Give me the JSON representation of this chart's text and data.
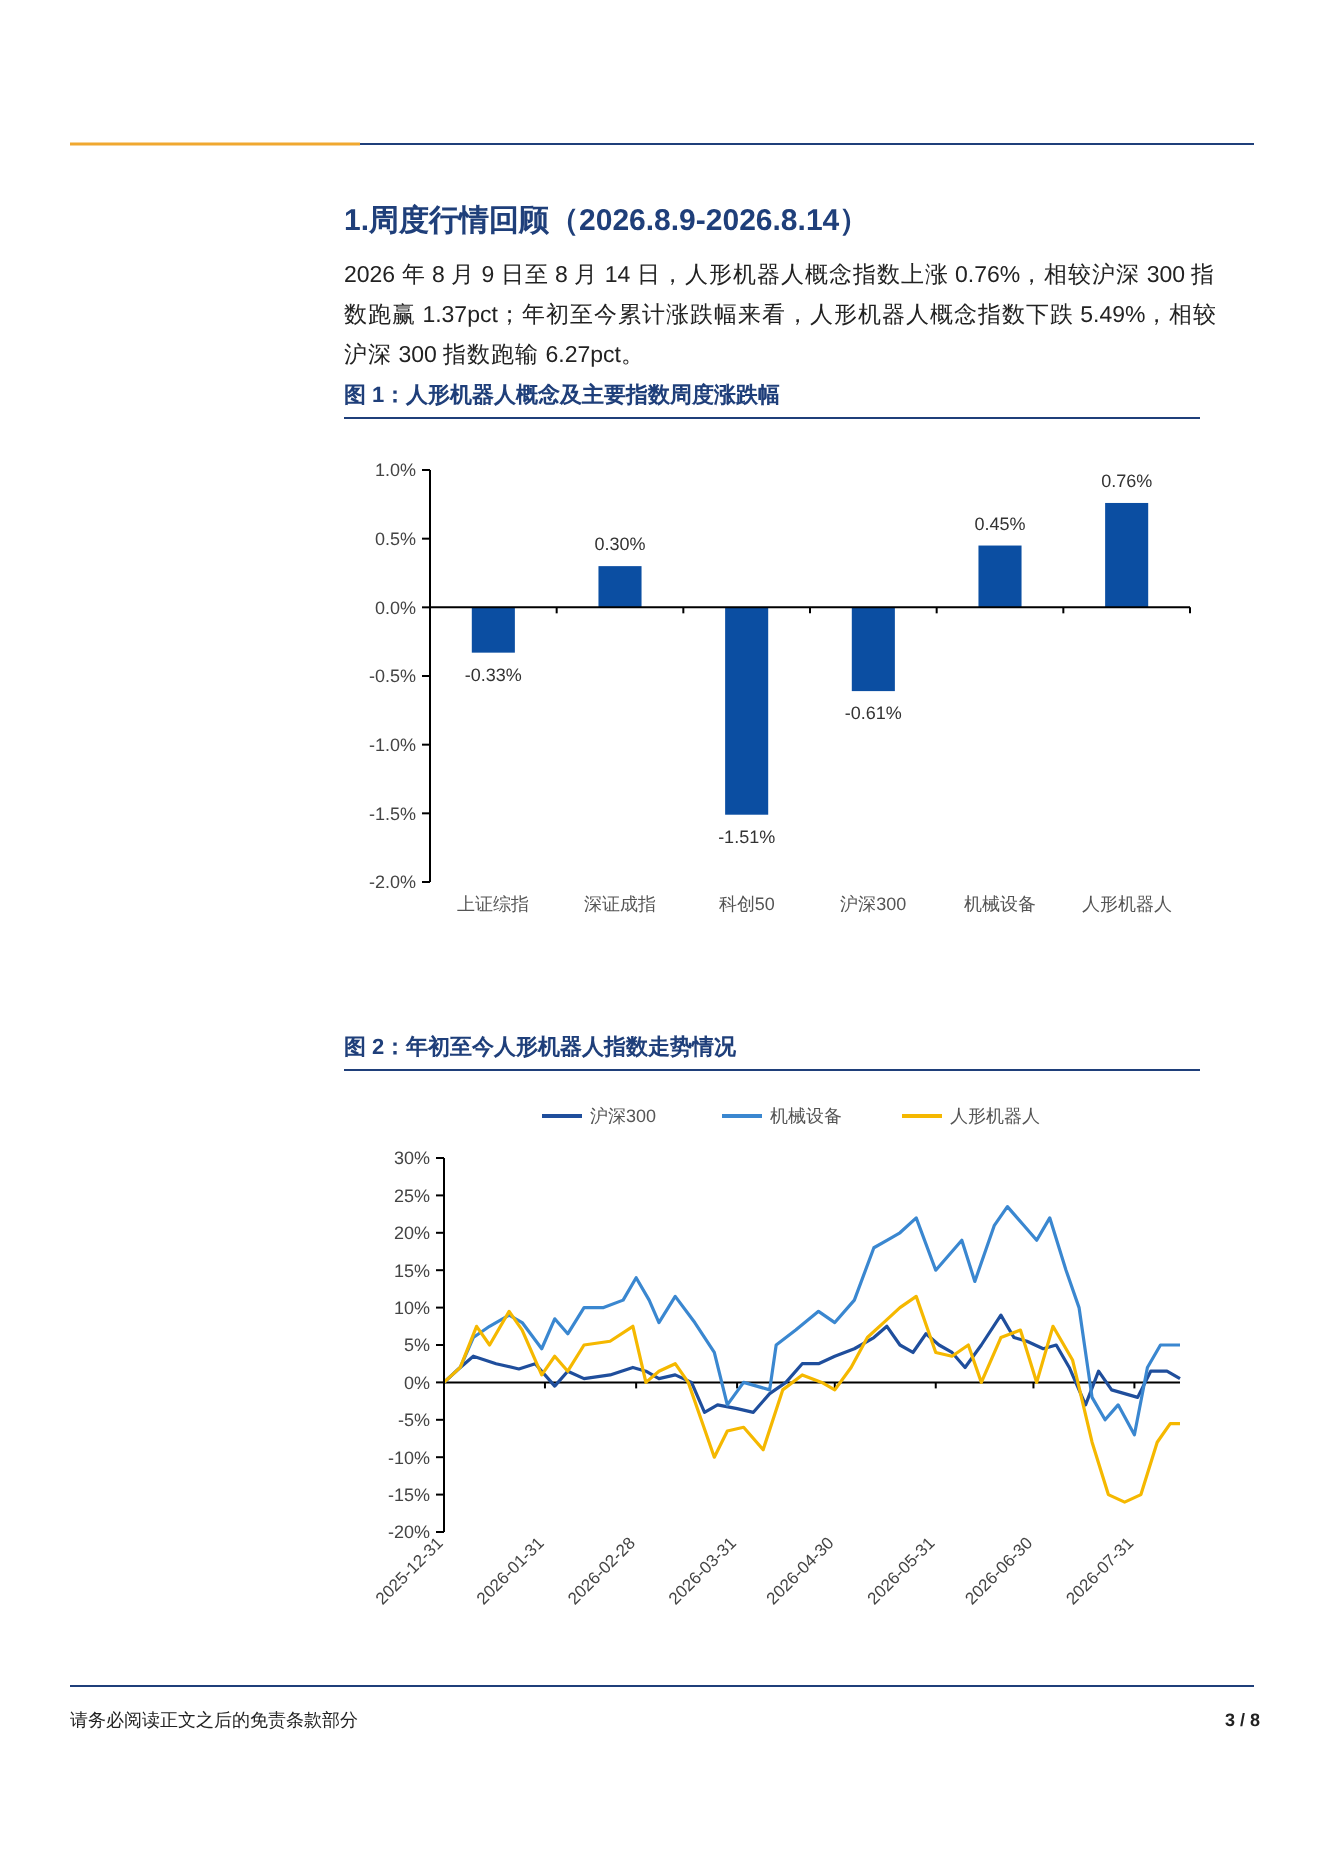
{
  "chart_data": [
    {
      "type": "bar",
      "title": "图 1：人形机器人概念及主要指数周度涨跌幅",
      "annotations": [
        "1.周度行情回顾（2026.8.9-2026.8.14）",
        "2026 年 8 月 9 日至 8 月 14 日，人形机器人概念指数上涨 0.76%，相较沪深 300 指数跑赢 1.37pct；年初至今累计涨跌幅来看，人形机器人概念指数下跌 5.49%，相较沪深 300 指数跑输 6.27pct。"
      ],
      "categories": [
        "上证综指",
        "深证成指",
        "科创50",
        "沪深300",
        "机械设备",
        "人形机器人"
      ],
      "values": [
        -0.33,
        0.3,
        -1.51,
        -0.61,
        0.45,
        0.76
      ],
      "value_labels": [
        "-0.33%",
        "0.30%",
        "-1.51%",
        "-0.61%",
        "0.45%",
        "0.76%"
      ],
      "color": "#0b4ea2",
      "ylim": [
        -2,
        1
      ],
      "yticks": [
        {
          "value": -2,
          "label": "-2.0%"
        },
        {
          "value": -1.5,
          "label": "-1.5%"
        },
        {
          "value": -1,
          "label": "-1.0%"
        },
        {
          "value": -0.5,
          "label": "-0.5%"
        },
        {
          "value": 0,
          "label": "0.0%"
        },
        {
          "value": 0.5,
          "label": "0.5%"
        },
        {
          "value": 1,
          "label": "1.0%"
        }
      ],
      "legend": false
    },
    {
      "type": "line",
      "title": "图 2：年初至今人形机器人指数走势情况",
      "annotations": [
        "请务必阅读正文之后的免责条款部分",
        "3 / 8"
      ],
      "legend": "top",
      "xlim": [
        "2025-12-31",
        "2026-08-14"
      ],
      "xticks": [
        "2025-12-31",
        "2026-01-31",
        "2026-02-28",
        "2026-03-31",
        "2026-04-30",
        "2026-05-31",
        "2026-06-30",
        "2026-07-31"
      ],
      "ylim": [
        -20,
        30
      ],
      "yticks": [
        {
          "value": -20,
          "label": "-20%"
        },
        {
          "value": -15,
          "label": "-15%"
        },
        {
          "value": -10,
          "label": "-10%"
        },
        {
          "value": -5,
          "label": "-5%"
        },
        {
          "value": 0,
          "label": "0%"
        },
        {
          "value": 5,
          "label": "5%"
        },
        {
          "value": 10,
          "label": "10%"
        },
        {
          "value": 15,
          "label": "15%"
        },
        {
          "value": 20,
          "label": "20%"
        },
        {
          "value": 25,
          "label": "25%"
        },
        {
          "value": 30,
          "label": "30%"
        }
      ],
      "series": [
        {
          "name": "沪深300",
          "color": "#1f4e9c",
          "x": [
            "2025-12-31",
            "2026-01-05",
            "2026-01-09",
            "2026-01-16",
            "2026-01-23",
            "2026-01-28",
            "2026-02-03",
            "2026-02-07",
            "2026-02-12",
            "2026-02-20",
            "2026-02-27",
            "2026-03-03",
            "2026-03-07",
            "2026-03-12",
            "2026-03-17",
            "2026-03-21",
            "2026-03-25",
            "2026-03-31",
            "2026-04-05",
            "2026-04-10",
            "2026-04-15",
            "2026-04-20",
            "2026-04-25",
            "2026-04-30",
            "2026-05-06",
            "2026-05-12",
            "2026-05-16",
            "2026-05-20",
            "2026-05-24",
            "2026-05-28",
            "2026-06-01",
            "2026-06-05",
            "2026-06-09",
            "2026-06-14",
            "2026-06-20",
            "2026-06-24",
            "2026-06-28",
            "2026-07-03",
            "2026-07-07",
            "2026-07-11",
            "2026-07-16",
            "2026-07-20",
            "2026-07-24",
            "2026-07-28",
            "2026-08-01",
            "2026-08-05",
            "2026-08-10",
            "2026-08-14"
          ],
          "values": [
            0,
            2,
            3.5,
            2.5,
            1.8,
            2.5,
            -0.5,
            1.5,
            0.5,
            1,
            2,
            1.5,
            0.5,
            1,
            0,
            -4,
            -3,
            -3.5,
            -4,
            -1.5,
            0,
            2.5,
            2.5,
            3.5,
            4.5,
            6,
            7.5,
            5,
            4,
            6.5,
            5,
            4,
            2,
            5,
            9,
            6,
            5.5,
            4.5,
            5,
            2,
            -3,
            1.5,
            -1,
            -1.5,
            -2,
            1.5,
            1.5,
            0.5
          ]
        },
        {
          "name": "机械设备",
          "color": "#3a87d0",
          "x": [
            "2025-12-31",
            "2026-01-05",
            "2026-01-09",
            "2026-01-14",
            "2026-01-20",
            "2026-01-24",
            "2026-01-30",
            "2026-02-03",
            "2026-02-07",
            "2026-02-12",
            "2026-02-18",
            "2026-02-24",
            "2026-02-28",
            "2026-03-04",
            "2026-03-07",
            "2026-03-12",
            "2026-03-18",
            "2026-03-24",
            "2026-03-28",
            "2026-04-02",
            "2026-04-06",
            "2026-04-10",
            "2026-04-12",
            "2026-04-18",
            "2026-04-25",
            "2026-04-30",
            "2026-05-06",
            "2026-05-12",
            "2026-05-16",
            "2026-05-20",
            "2026-05-25",
            "2026-05-31",
            "2026-06-04",
            "2026-06-08",
            "2026-06-12",
            "2026-06-18",
            "2026-06-22",
            "2026-06-27",
            "2026-07-01",
            "2026-07-05",
            "2026-07-10",
            "2026-07-14",
            "2026-07-18",
            "2026-07-22",
            "2026-07-26",
            "2026-07-31",
            "2026-08-04",
            "2026-08-08",
            "2026-08-14"
          ],
          "values": [
            0,
            2,
            6,
            7.5,
            9,
            8,
            4.5,
            8.5,
            6.5,
            10,
            10,
            11,
            14,
            11,
            8,
            11.5,
            8,
            4,
            -3,
            0,
            -0.5,
            -1,
            5,
            7,
            9.5,
            8,
            11,
            18,
            19,
            20,
            22,
            15,
            17,
            19,
            13.5,
            21,
            23.5,
            21,
            19,
            22,
            15,
            10,
            -2,
            -5,
            -3,
            -7,
            2,
            5,
            5
          ]
        },
        {
          "name": "人形机器人",
          "color": "#f5b800",
          "x": [
            "2025-12-31",
            "2026-01-05",
            "2026-01-10",
            "2026-01-14",
            "2026-01-20",
            "2026-01-24",
            "2026-01-30",
            "2026-02-03",
            "2026-02-07",
            "2026-02-12",
            "2026-02-20",
            "2026-02-27",
            "2026-03-03",
            "2026-03-07",
            "2026-03-12",
            "2026-03-16",
            "2026-03-20",
            "2026-03-24",
            "2026-03-28",
            "2026-04-02",
            "2026-04-08",
            "2026-04-14",
            "2026-04-20",
            "2026-04-26",
            "2026-04-30",
            "2026-05-05",
            "2026-05-10",
            "2026-05-15",
            "2026-05-20",
            "2026-05-25",
            "2026-05-31",
            "2026-06-05",
            "2026-06-10",
            "2026-06-14",
            "2026-06-20",
            "2026-06-26",
            "2026-07-01",
            "2026-07-06",
            "2026-07-12",
            "2026-07-18",
            "2026-07-23",
            "2026-07-28",
            "2026-08-02",
            "2026-08-07",
            "2026-08-11",
            "2026-08-14"
          ],
          "values": [
            0,
            2,
            7.5,
            5,
            9.5,
            7,
            1,
            3.5,
            1.5,
            5,
            5.5,
            7.5,
            0,
            1.5,
            2.5,
            0,
            -5,
            -10,
            -6.5,
            -6,
            -9,
            -1,
            1,
            0,
            -1,
            2,
            6,
            8,
            10,
            11.5,
            4,
            3.5,
            5,
            0,
            6,
            7,
            0,
            7.5,
            3,
            -8,
            -15,
            -16,
            -15,
            -8,
            -5.5,
            -5.5
          ]
        }
      ]
    }
  ]
}
